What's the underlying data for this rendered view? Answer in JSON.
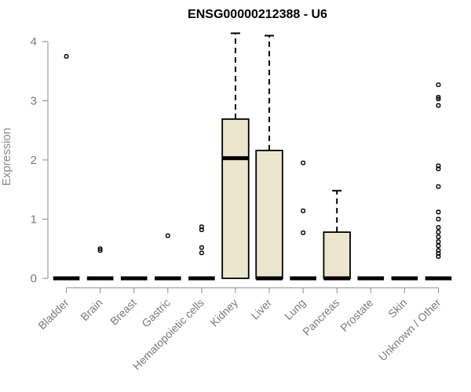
{
  "chart_data": {
    "type": "box",
    "title": "ENSG00000212388 - U6",
    "xlabel": "",
    "ylabel": "Expression",
    "ylim": [
      0,
      4.1
    ],
    "yticks": [
      0,
      1,
      2,
      3,
      4
    ],
    "categories": [
      "Bladder",
      "Brain",
      "Breast",
      "Gastric",
      "Hematopoietic cells",
      "Kidney",
      "Liver",
      "Lung",
      "Pancreas",
      "Prostate",
      "Skin",
      "Unknown / Other"
    ],
    "boxes": [
      {
        "category": "Bladder",
        "min": 0,
        "q1": 0,
        "median": 0,
        "q3": 0,
        "max": 0,
        "outliers": [
          3.75
        ]
      },
      {
        "category": "Brain",
        "min": 0,
        "q1": 0,
        "median": 0,
        "q3": 0,
        "max": 0,
        "outliers": [
          0.47,
          0.5
        ]
      },
      {
        "category": "Breast",
        "min": 0,
        "q1": 0,
        "median": 0,
        "q3": 0,
        "max": 0,
        "outliers": []
      },
      {
        "category": "Gastric",
        "min": 0,
        "q1": 0,
        "median": 0,
        "q3": 0,
        "max": 0,
        "outliers": [
          0.72
        ]
      },
      {
        "category": "Hematopoietic cells",
        "min": 0,
        "q1": 0,
        "median": 0,
        "q3": 0,
        "max": 0,
        "outliers": [
          0.43,
          0.52,
          0.82,
          0.87
        ]
      },
      {
        "category": "Kidney",
        "min": 0,
        "q1": 0,
        "median": 2.03,
        "q3": 2.69,
        "max": 4.14,
        "outliers": []
      },
      {
        "category": "Liver",
        "min": 0,
        "q1": 0,
        "median": 0,
        "q3": 2.16,
        "max": 4.1,
        "outliers": []
      },
      {
        "category": "Lung",
        "min": 0,
        "q1": 0,
        "median": 0,
        "q3": 0,
        "max": 0,
        "outliers": [
          0.77,
          1.14,
          1.95
        ]
      },
      {
        "category": "Pancreas",
        "min": 0,
        "q1": 0,
        "median": 0,
        "q3": 0.78,
        "max": 1.48,
        "outliers": []
      },
      {
        "category": "Prostate",
        "min": 0,
        "q1": 0,
        "median": 0,
        "q3": 0,
        "max": 0,
        "outliers": []
      },
      {
        "category": "Skin",
        "min": 0,
        "q1": 0,
        "median": 0,
        "q3": 0,
        "max": 0,
        "outliers": []
      },
      {
        "category": "Unknown / Other",
        "min": 0,
        "q1": 0,
        "median": 0,
        "q3": 0,
        "max": 0,
        "outliers": [
          0.37,
          0.42,
          0.47,
          0.55,
          0.62,
          0.7,
          0.78,
          0.86,
          1.0,
          1.12,
          1.55,
          1.85,
          1.9,
          2.92,
          3.03,
          3.06,
          3.27
        ]
      }
    ],
    "colors": {
      "box_fill": "#ede6cf",
      "box_stroke": "#000000",
      "axis": "#8a8a8a",
      "tick_text": "#7a7a7a"
    },
    "grid": false,
    "legend": "none"
  }
}
